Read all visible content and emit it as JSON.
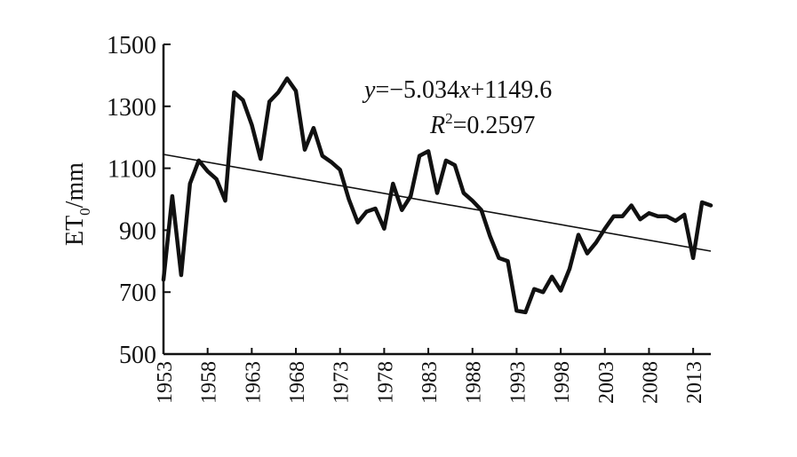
{
  "chart_data": {
    "type": "line",
    "ylabel": "ET0/mm",
    "ylabel_main": "ET",
    "ylabel_sub": "0",
    "ylabel_unit": "/mm",
    "ylim": [
      500,
      1500
    ],
    "xlim": [
      1953,
      2015
    ],
    "y_ticks": [
      "500",
      "700",
      "900",
      "1100",
      "1300",
      "1500"
    ],
    "x_ticks": [
      "1953",
      "1958",
      "1963",
      "1968",
      "1973",
      "1978",
      "1983",
      "1988",
      "1993",
      "1998",
      "2003",
      "2008",
      "2013"
    ],
    "grid": false,
    "series": [
      {
        "x": [
          1953,
          1954,
          1955,
          1956,
          1957,
          1958,
          1959,
          1960,
          1961,
          1962,
          1963,
          1964,
          1965,
          1966,
          1967,
          1968,
          1969,
          1970,
          1971,
          1972,
          1973,
          1974,
          1975,
          1976,
          1977,
          1978,
          1979,
          1980,
          1981,
          1982,
          1983,
          1984,
          1985,
          1986,
          1987,
          1988,
          1989,
          1990,
          1991,
          1992,
          1993,
          1994,
          1995,
          1996,
          1997,
          1998,
          1999,
          2000,
          2001,
          2002,
          2003,
          2004,
          2005,
          2006,
          2007,
          2008,
          2009,
          2010,
          2011,
          2012,
          2013,
          2014,
          2015
        ],
        "y": [
          740,
          1010,
          755,
          1050,
          1125,
          1090,
          1065,
          995,
          1345,
          1320,
          1240,
          1130,
          1315,
          1345,
          1390,
          1350,
          1160,
          1230,
          1140,
          1120,
          1095,
          1000,
          925,
          960,
          970,
          905,
          1050,
          965,
          1010,
          1140,
          1155,
          1020,
          1125,
          1110,
          1020,
          995,
          965,
          880,
          810,
          800,
          640,
          635,
          710,
          700,
          750,
          705,
          775,
          885,
          825,
          860,
          905,
          945,
          945,
          980,
          935,
          955,
          945,
          945,
          930,
          950,
          810,
          990,
          980
        ]
      },
      {
        "x": [
          1953,
          2015
        ],
        "y": [
          1144.6,
          832.5
        ]
      }
    ],
    "annotations": {
      "equation": {
        "y_var": "y",
        "eq_rest": "=−5.034",
        "x_var": "x",
        "intercept": "+1149.6"
      },
      "r_squared": {
        "label": "R",
        "sup": "2",
        "value": "=0.2597"
      }
    }
  }
}
